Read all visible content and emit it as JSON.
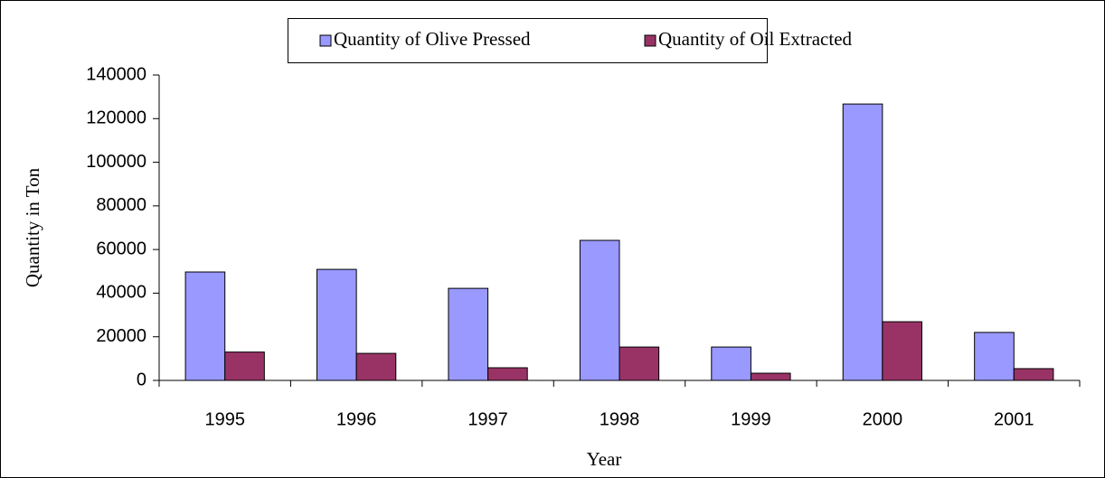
{
  "chart_data": {
    "type": "bar",
    "categories": [
      "1995",
      "1996",
      "1997",
      "1998",
      "1999",
      "2000",
      "2001"
    ],
    "series": [
      {
        "name": "Quantity of Olive Pressed",
        "color": "#9999ff",
        "values": [
          49700,
          50900,
          42200,
          64200,
          15300,
          126700,
          22000
        ]
      },
      {
        "name": "Quantity of Oil Extracted",
        "color": "#993366",
        "values": [
          13000,
          12400,
          5800,
          15300,
          3300,
          26900,
          5400
        ]
      }
    ],
    "xlabel": "Year",
    "ylabel": "Quantity in Ton",
    "ylim": [
      0,
      140000
    ],
    "yticks": [
      0,
      20000,
      40000,
      60000,
      80000,
      100000,
      120000,
      140000
    ],
    "grid": false,
    "legend": "top"
  }
}
